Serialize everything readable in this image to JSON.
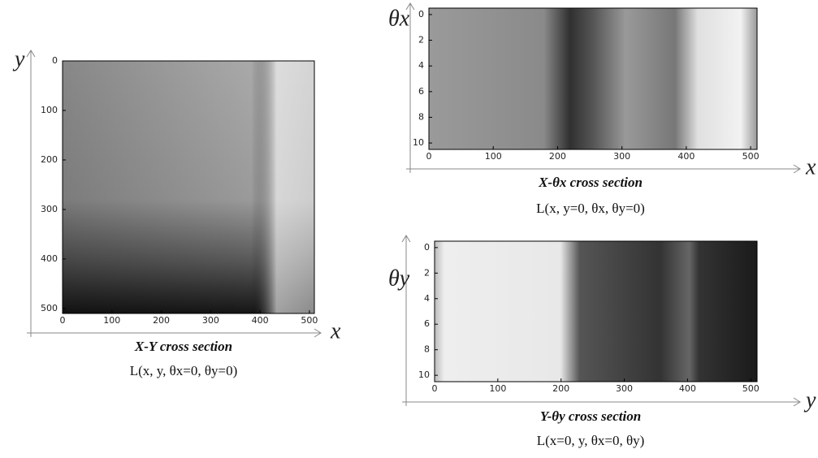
{
  "panels": [
    {
      "x_label": "x",
      "y_label": "y",
      "caption": "X-Y cross section",
      "formula": "L(x, y, θx=0, θy=0)",
      "xlim": [
        0,
        510
      ],
      "ylim": [
        510,
        0
      ],
      "xticks": [
        0,
        100,
        200,
        300,
        400,
        500
      ],
      "yticks": [
        0,
        100,
        200,
        300,
        400,
        500
      ]
    },
    {
      "x_label": "x",
      "y_label": "θx",
      "caption": "X-θx cross section",
      "formula": "L(x, y=0, θx, θy=0)",
      "xlim": [
        0,
        510
      ],
      "ylim": [
        10.5,
        -0.5
      ],
      "xticks": [
        0,
        100,
        200,
        300,
        400,
        500
      ],
      "yticks": [
        0,
        2,
        4,
        6,
        8,
        10
      ]
    },
    {
      "x_label": "y",
      "y_label": "θy",
      "caption": "Y-θy cross section",
      "formula": "L(x=0, y, θx=0, θy)",
      "xlim": [
        0,
        510
      ],
      "ylim": [
        10.5,
        -0.5
      ],
      "xticks": [
        0,
        100,
        200,
        300,
        400,
        500
      ],
      "yticks": [
        0,
        2,
        4,
        6,
        8,
        10
      ]
    }
  ]
}
